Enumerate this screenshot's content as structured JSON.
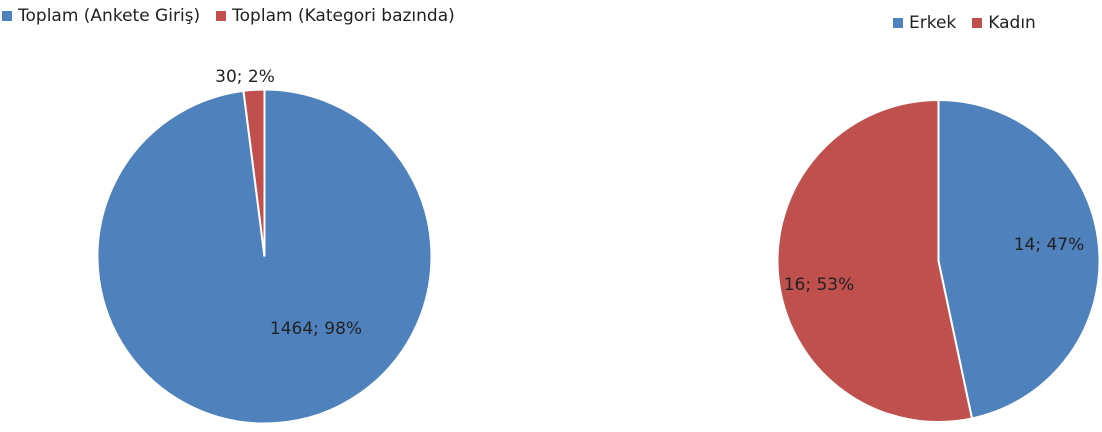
{
  "chart_data": [
    {
      "type": "pie",
      "title": "",
      "series": [
        {
          "name": "",
          "categories": [
            "Toplam (Ankete Giriş)",
            "Toplam (Kategori bazında)"
          ],
          "values": [
            1464,
            30
          ],
          "percents": [
            98,
            2
          ],
          "data_labels": [
            "1464; 98%",
            "30; 2%"
          ],
          "colors": [
            "#4F81BD",
            "#C0504D"
          ]
        }
      ],
      "legend": {
        "position": "top-left",
        "entries": [
          "Toplam (Ankete Giriş)",
          "Toplam (Kategori bazında)"
        ]
      }
    },
    {
      "type": "pie",
      "title": "",
      "series": [
        {
          "name": "",
          "categories": [
            "Erkek",
            "Kadın"
          ],
          "values": [
            14,
            16
          ],
          "percents": [
            47,
            53
          ],
          "data_labels": [
            "14; 47%",
            "16; 53%"
          ],
          "colors": [
            "#4F81BD",
            "#C0504D"
          ]
        }
      ],
      "legend": {
        "position": "top-right",
        "entries": [
          "Erkek",
          "Kadın"
        ]
      }
    }
  ]
}
